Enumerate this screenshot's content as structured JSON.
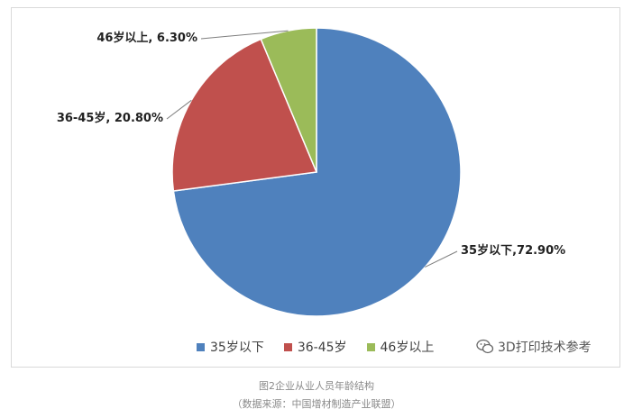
{
  "chart_data": {
    "type": "pie",
    "title": "",
    "categories": [
      "35岁以下",
      "36-45岁",
      "46岁以上"
    ],
    "values": [
      72.9,
      20.8,
      6.3
    ],
    "colors": [
      "#4f81bd",
      "#c0504d",
      "#9bbb59"
    ],
    "data_labels": [
      "35岁以下,72.90%",
      "36-45岁, 20.80%",
      "46岁以上, 6.30%"
    ],
    "legend": {
      "placement": "bottom",
      "entries": [
        "35岁以下",
        "36-45岁",
        "46岁以上"
      ]
    }
  },
  "watermark": {
    "text": "3D打印技术参考",
    "icon": "chat-bubble-icon"
  },
  "caption": {
    "title": "图2企业从业人员年龄结构",
    "source": "（数据来源：中国增材制造产业联盟）"
  }
}
